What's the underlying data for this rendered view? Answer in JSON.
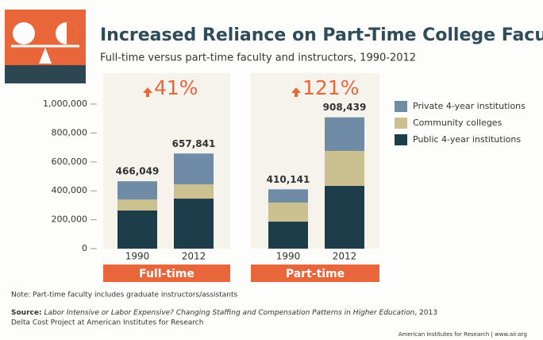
{
  "chart_data": {
    "type": "stacked_bar",
    "title": "Increased Reliance on Part-Time College Faculty",
    "subtitle": "Full-time versus part-time faculty and instructors, 1990-2012",
    "categories": [
      "1990",
      "2012",
      "1990",
      "2012"
    ],
    "groups": [
      "Full-time",
      "Part-time"
    ],
    "series": [
      {
        "name": "Public 4-year institutions",
        "color": "#1e3d4b",
        "values": [
          264000,
          346000,
          187000,
          434000
        ]
      },
      {
        "name": "Community colleges",
        "color": "#cbc190",
        "values": [
          76000,
          99000,
          132000,
          242000
        ]
      },
      {
        "name": "Private 4-year institutions",
        "color": "#6f8ba6",
        "values": [
          126049,
          212841,
          91141,
          232439
        ]
      }
    ],
    "totals": {
      "values": [
        466049,
        657841,
        410141,
        908439
      ],
      "value_labels": [
        "466,049",
        "657,841",
        "410,141",
        "908,439"
      ]
    },
    "changes": {
      "values": [
        41,
        121
      ],
      "value_labels": [
        "41%",
        "121%"
      ]
    },
    "ylim": [
      0,
      1000000
    ],
    "yticks": [
      0,
      {
        "value": 200000,
        "label": "200,000"
      },
      {
        "value": 400000,
        "label": "400,000"
      },
      {
        "value": 600000,
        "label": "600,000"
      },
      {
        "value": 800000,
        "label": "800,000"
      },
      {
        "value": 1000000,
        "label": "1,000,000"
      }
    ],
    "legend": "right",
    "accent_color": "#e8663a"
  },
  "note": "Note: Part-time faculty includes graduate instructors/assistants",
  "source": {
    "label": "Source:",
    "title": "Labor Intensive or Labor Expensive? Changing Staffing and Compensation Patterns in Higher Education",
    "rest": ", 2013",
    "line2": "Delta Cost Project at American Institutes for Research"
  },
  "footer": "American Institutes for Research | www.air.org"
}
